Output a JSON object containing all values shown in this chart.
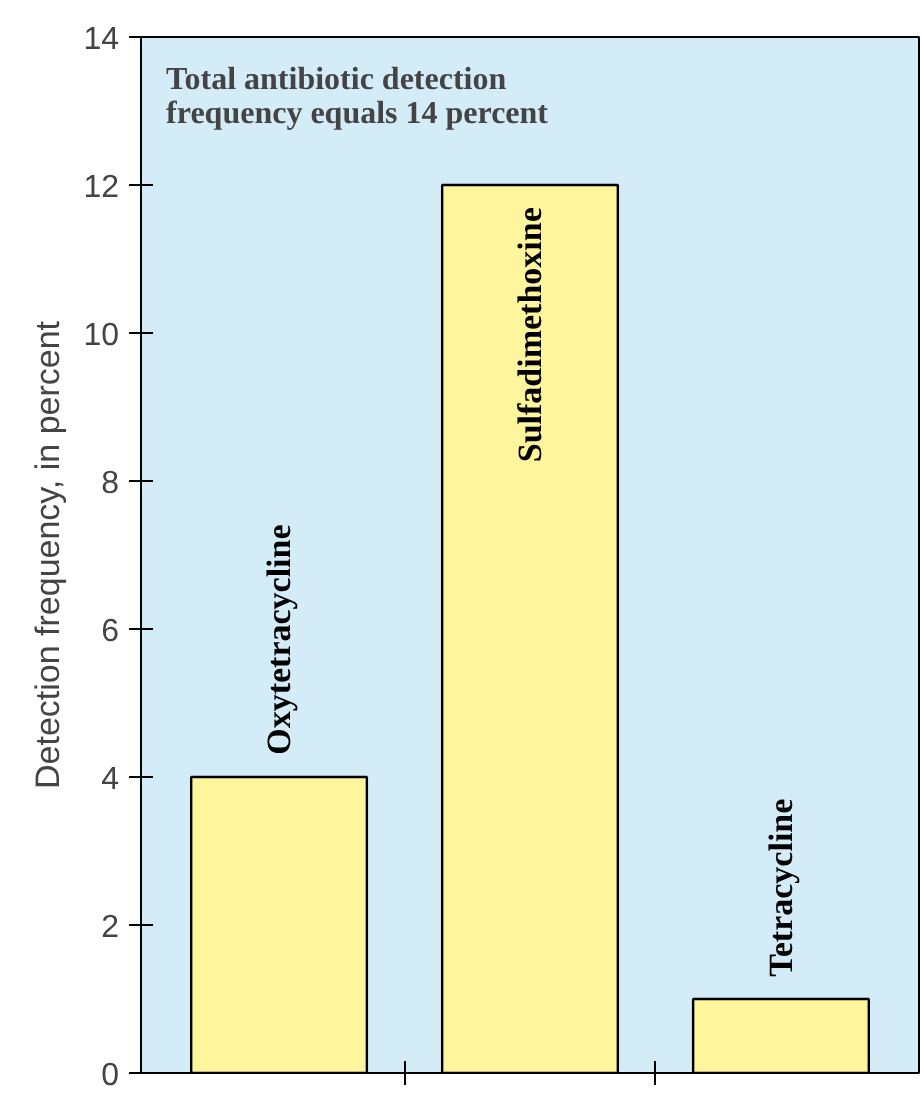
{
  "chart_data": {
    "type": "bar",
    "categories": [
      "Oxytetracycline",
      "Sulfadimethoxine",
      "Tetracycline"
    ],
    "values": [
      4,
      12,
      1
    ],
    "color": "#fff59d",
    "ylabel": "Detection frequency, in percent",
    "annotations": [
      "Total antibiotic detection\nfrequency equals 14 percent"
    ],
    "ylim": [
      0,
      14
    ],
    "yticks": [
      0,
      2,
      4,
      6,
      8,
      10,
      12,
      14
    ],
    "grid": false
  }
}
